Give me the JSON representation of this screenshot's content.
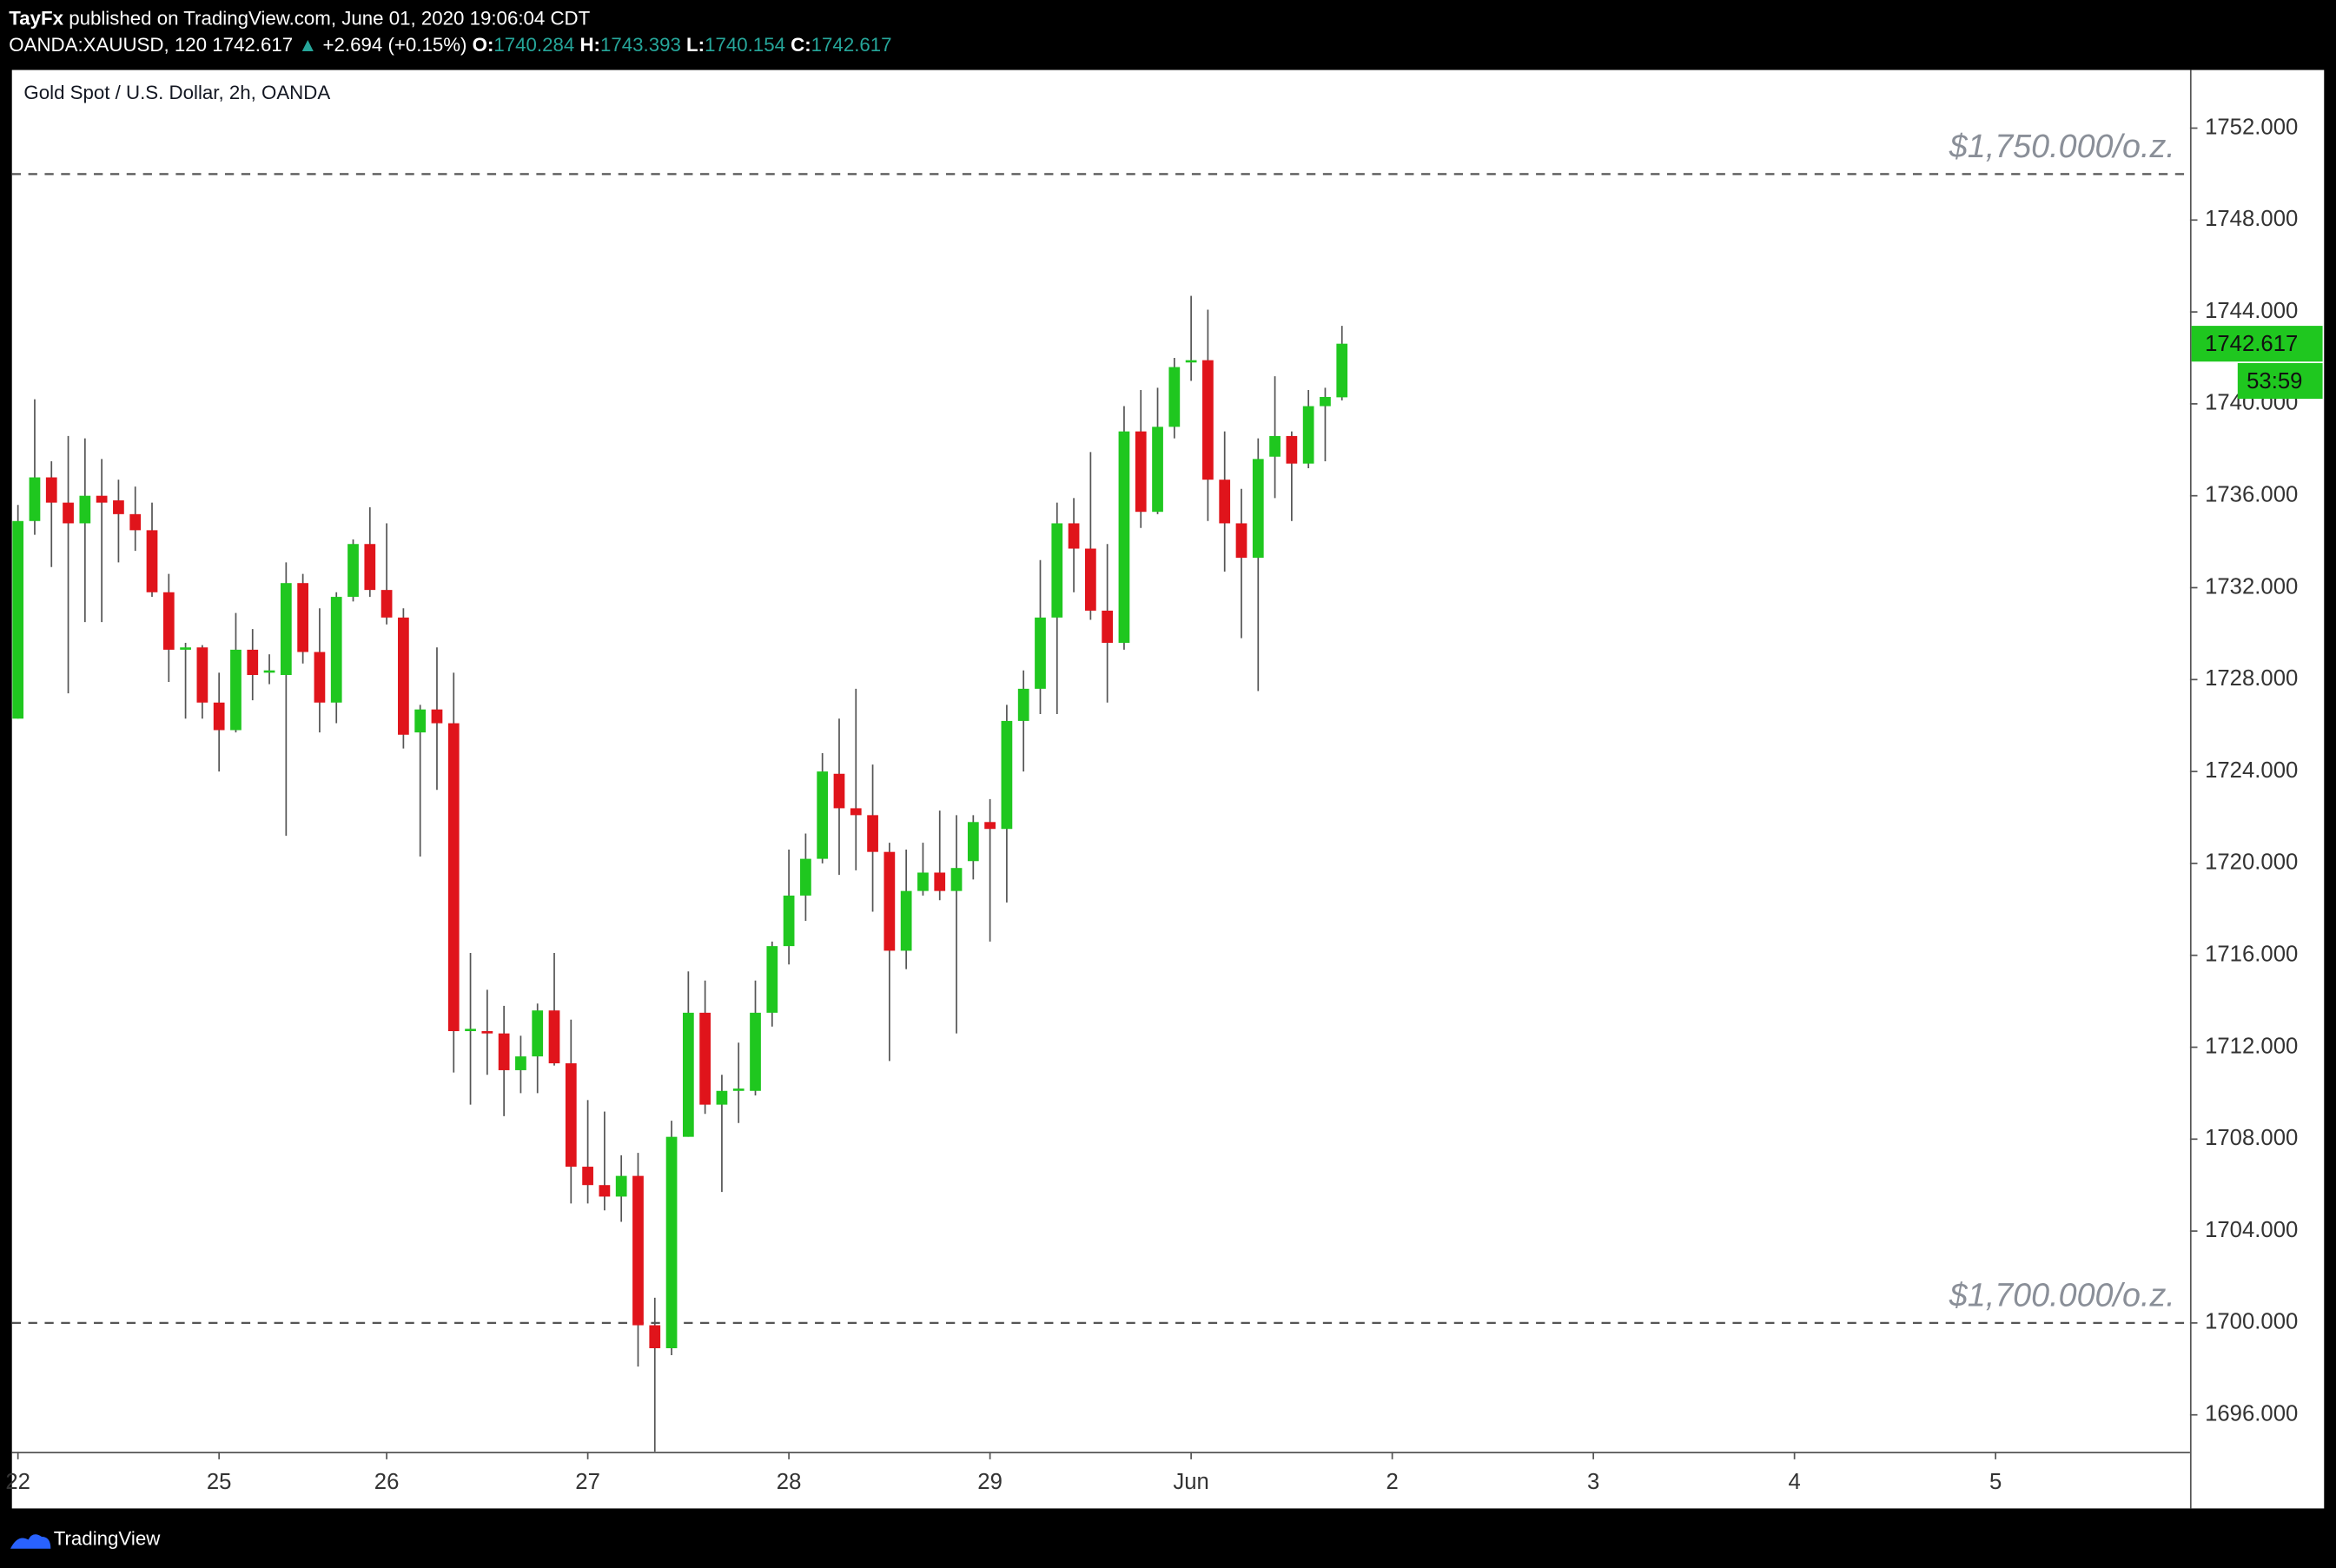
{
  "header": {
    "author": "TayFx",
    "published": "published on TradingView.com, June 01, 2020 19:06:04 CDT",
    "symbol": "OANDA:XAUUSD, 120",
    "last": "1742.617",
    "change": "+2.694 (+0.15%)",
    "ohlc": [
      {
        "label": "O:",
        "value": "1740.284"
      },
      {
        "label": "H:",
        "value": "1743.393"
      },
      {
        "label": "L:",
        "value": "1740.154"
      },
      {
        "label": "C:",
        "value": "1742.617"
      }
    ]
  },
  "chart_data": {
    "type": "candlestick",
    "title": "Gold Spot / U.S. Dollar, 2h, OANDA",
    "open": [
      1726.3,
      1734.9,
      1736.8,
      1735.7,
      1734.8,
      1736.0,
      1735.8,
      1735.2,
      1734.5,
      1731.8,
      1729.3,
      1729.4,
      1727.0,
      1725.8,
      1729.3,
      1728.3,
      1728.2,
      1732.2,
      1729.2,
      1727.0,
      1731.6,
      1733.9,
      1731.9,
      1730.7,
      1725.7,
      1726.7,
      1726.1,
      1712.7,
      1712.7,
      1712.6,
      1711.0,
      1711.6,
      1713.6,
      1711.3,
      1706.8,
      1706.0,
      1705.5,
      1706.4,
      1699.9,
      1698.9,
      1708.1,
      1713.5,
      1709.5,
      1710.1,
      1710.1,
      1713.5,
      1716.4,
      1718.6,
      1720.2,
      1723.9,
      1722.4,
      1722.1,
      1720.5,
      1716.2,
      1718.8,
      1719.6,
      1718.8,
      1720.1,
      1721.8,
      1721.5,
      1726.2,
      1727.6,
      1730.7,
      1734.8,
      1733.7,
      1731.0,
      1729.6,
      1738.8,
      1735.3,
      1739.0,
      1741.8,
      1741.9,
      1736.7,
      1734.8,
      1733.3,
      1737.7,
      1738.6,
      1737.4,
      1739.9,
      1740.284
    ],
    "high": [
      1735.6,
      1740.2,
      1737.5,
      1738.6,
      1738.5,
      1737.6,
      1736.7,
      1736.4,
      1735.7,
      1732.6,
      1729.6,
      1729.5,
      1728.3,
      1730.9,
      1730.2,
      1729.1,
      1733.1,
      1732.6,
      1731.1,
      1731.8,
      1734.1,
      1735.5,
      1734.8,
      1731.1,
      1726.9,
      1729.4,
      1728.3,
      1716.1,
      1714.5,
      1713.8,
      1712.5,
      1713.9,
      1716.1,
      1713.2,
      1709.7,
      1709.2,
      1707.3,
      1707.4,
      1701.1,
      1708.8,
      1715.3,
      1714.9,
      1710.8,
      1712.2,
      1714.9,
      1716.6,
      1720.6,
      1721.3,
      1724.8,
      1726.3,
      1727.6,
      1724.3,
      1720.9,
      1720.6,
      1720.9,
      1722.3,
      1722.1,
      1722.1,
      1722.8,
      1726.9,
      1728.4,
      1733.2,
      1735.7,
      1735.9,
      1737.9,
      1733.9,
      1739.9,
      1740.6,
      1740.7,
      1742.0,
      1744.7,
      1744.1,
      1738.8,
      1736.3,
      1738.5,
      1741.2,
      1738.8,
      1740.6,
      1740.7,
      1743.393
    ],
    "low": [
      1726.3,
      1734.3,
      1732.9,
      1727.4,
      1730.5,
      1730.5,
      1733.1,
      1733.6,
      1731.6,
      1727.9,
      1726.3,
      1726.3,
      1724.0,
      1725.7,
      1727.1,
      1727.8,
      1721.2,
      1728.7,
      1725.7,
      1726.1,
      1731.4,
      1731.6,
      1730.4,
      1725.0,
      1720.3,
      1723.2,
      1710.9,
      1709.5,
      1710.8,
      1709.0,
      1710.0,
      1710.0,
      1711.2,
      1705.2,
      1705.2,
      1704.9,
      1704.4,
      1698.1,
      1694.4,
      1698.6,
      1708.1,
      1709.1,
      1705.7,
      1708.7,
      1709.9,
      1712.9,
      1715.6,
      1717.5,
      1720.0,
      1719.5,
      1719.7,
      1717.9,
      1711.4,
      1715.4,
      1718.6,
      1718.4,
      1712.6,
      1719.3,
      1716.6,
      1718.3,
      1724.0,
      1726.5,
      1726.5,
      1731.8,
      1730.6,
      1727.0,
      1729.3,
      1734.6,
      1735.2,
      1738.5,
      1741.0,
      1734.9,
      1732.7,
      1729.8,
      1727.5,
      1735.9,
      1734.9,
      1737.2,
      1737.5,
      1740.154
    ],
    "close": [
      1734.9,
      1736.8,
      1735.7,
      1734.8,
      1736.0,
      1735.7,
      1735.2,
      1734.5,
      1731.8,
      1729.3,
      1729.4,
      1727.0,
      1725.8,
      1729.3,
      1728.2,
      1728.4,
      1732.2,
      1729.2,
      1727.0,
      1731.6,
      1733.9,
      1731.9,
      1730.7,
      1725.6,
      1726.7,
      1726.1,
      1712.7,
      1712.8,
      1712.6,
      1711.0,
      1711.6,
      1713.6,
      1711.3,
      1706.8,
      1706.0,
      1705.5,
      1706.4,
      1699.9,
      1698.9,
      1708.1,
      1713.5,
      1709.5,
      1710.1,
      1710.2,
      1713.5,
      1716.4,
      1718.6,
      1720.2,
      1724.0,
      1722.4,
      1722.1,
      1720.5,
      1716.2,
      1718.8,
      1719.6,
      1718.8,
      1719.8,
      1721.8,
      1721.5,
      1726.2,
      1727.6,
      1730.7,
      1734.8,
      1733.7,
      1731.0,
      1729.6,
      1738.8,
      1735.3,
      1739.0,
      1741.6,
      1741.9,
      1736.7,
      1734.8,
      1733.3,
      1737.6,
      1738.6,
      1737.4,
      1739.9,
      1740.3,
      1742.617
    ],
    "up_color": "#1fc71f",
    "down_color": "#e0141b",
    "xlim": [
      -0.36,
      129.6
    ],
    "xticks": [
      {
        "value": 0,
        "label": "22"
      },
      {
        "value": 12,
        "label": "25"
      },
      {
        "value": 22,
        "label": "26"
      },
      {
        "value": 34,
        "label": "27"
      },
      {
        "value": 46,
        "label": "28"
      },
      {
        "value": 58,
        "label": "29"
      },
      {
        "value": 70,
        "label": "Jun"
      },
      {
        "value": 82,
        "label": "2"
      },
      {
        "value": 94,
        "label": "3"
      },
      {
        "value": 106,
        "label": "4"
      },
      {
        "value": 118,
        "label": "5"
      }
    ],
    "ylim": [
      1694.39,
      1754.53
    ],
    "yticks": [
      {
        "value": 1696,
        "label": "1696.000"
      },
      {
        "value": 1700,
        "label": "1700.000"
      },
      {
        "value": 1704,
        "label": "1704.000"
      },
      {
        "value": 1708,
        "label": "1708.000"
      },
      {
        "value": 1712,
        "label": "1712.000"
      },
      {
        "value": 1716,
        "label": "1716.000"
      },
      {
        "value": 1720,
        "label": "1720.000"
      },
      {
        "value": 1724,
        "label": "1724.000"
      },
      {
        "value": 1728,
        "label": "1728.000"
      },
      {
        "value": 1732,
        "label": "1732.000"
      },
      {
        "value": 1736,
        "label": "1736.000"
      },
      {
        "value": 1740,
        "label": "1740.000"
      },
      {
        "value": 1744,
        "label": "1744.000"
      },
      {
        "value": 1748,
        "label": "1748.000"
      },
      {
        "value": 1752,
        "label": "1752.000"
      }
    ],
    "grid": false,
    "levels": [
      {
        "value": 1750,
        "label": "$1,750.000/o.z."
      },
      {
        "value": 1700,
        "label": "$1,700.000/o.z."
      }
    ],
    "last_price_label": "1742.617",
    "countdown": "53:59"
  },
  "footer": "TradingView"
}
